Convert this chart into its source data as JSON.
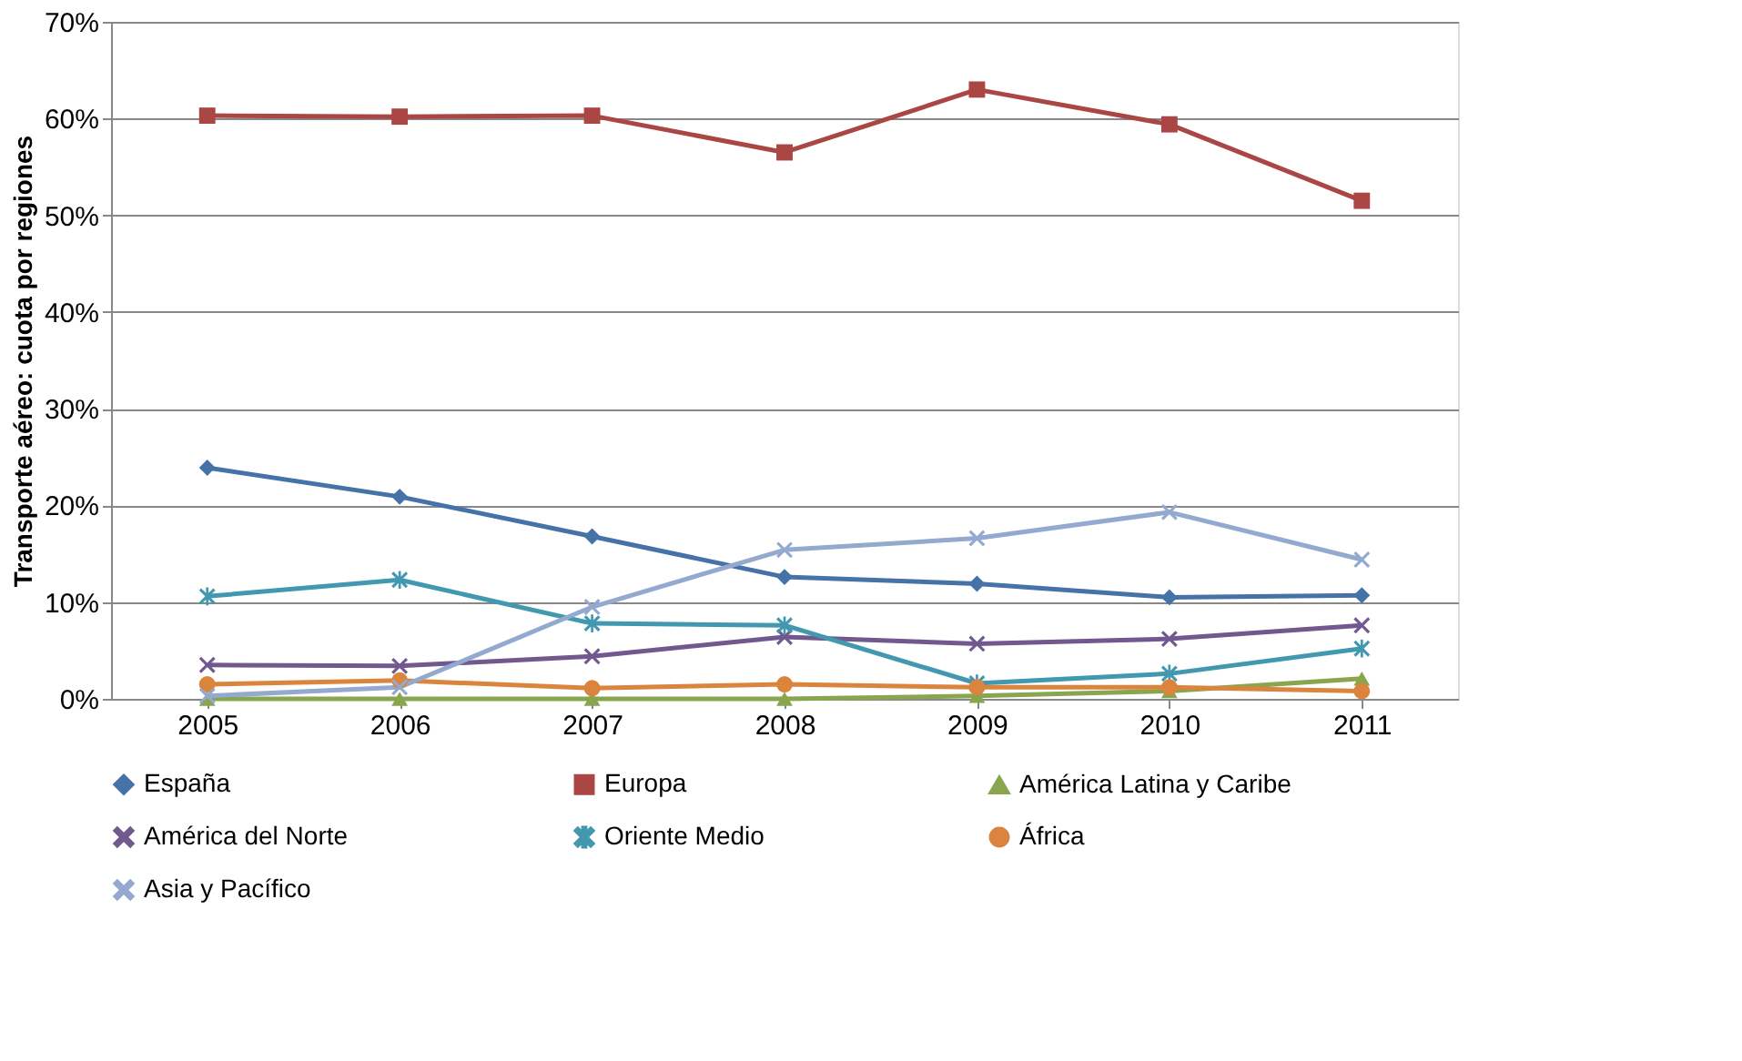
{
  "chart_data": {
    "type": "line",
    "ylabel": "Transporte aéreo: cuota por regiones",
    "categories": [
      "2005",
      "2006",
      "2007",
      "2008",
      "2009",
      "2010",
      "2011"
    ],
    "series": [
      {
        "name": "España",
        "color": "#4572a7",
        "marker": "diamond",
        "values": [
          23.9,
          20.9,
          16.8,
          12.6,
          11.9,
          10.5,
          10.7
        ]
      },
      {
        "name": "Europa",
        "color": "#aa4643",
        "marker": "square",
        "values": [
          60.3,
          60.2,
          60.3,
          56.5,
          63.0,
          59.4,
          51.5
        ]
      },
      {
        "name": "América Latina y Caribe",
        "color": "#89a54e",
        "marker": "triangle",
        "values": [
          0,
          0,
          0,
          0,
          0.3,
          0.8,
          2.1
        ]
      },
      {
        "name": "América del Norte",
        "color": "#71588f",
        "marker": "cross",
        "values": [
          3.5,
          3.4,
          4.4,
          6.4,
          5.7,
          6.2,
          7.6
        ]
      },
      {
        "name": "Oriente Medio",
        "color": "#4198af",
        "marker": "star",
        "values": [
          10.6,
          12.3,
          7.8,
          7.6,
          1.6,
          2.6,
          5.2
        ]
      },
      {
        "name": "África",
        "color": "#db843d",
        "marker": "circle",
        "values": [
          1.5,
          1.9,
          1.1,
          1.5,
          1.2,
          1.2,
          0.8
        ]
      },
      {
        "name": "Asia y Pacífico",
        "color": "#93a9cf",
        "marker": "cross",
        "values": [
          0.3,
          1.2,
          9.5,
          15.4,
          16.6,
          19.3,
          14.4
        ]
      }
    ],
    "ylim": [
      0,
      70
    ],
    "yticks": [
      {
        "value": 0,
        "label": "0%"
      },
      {
        "value": 10,
        "label": "10%"
      },
      {
        "value": 20,
        "label": "20%"
      },
      {
        "value": 30,
        "label": "30%"
      },
      {
        "value": 40,
        "label": "40%"
      },
      {
        "value": 50,
        "label": "50%"
      },
      {
        "value": 60,
        "label": "60%"
      },
      {
        "value": 70,
        "label": "70%"
      }
    ],
    "grid": "y",
    "legend": "bottom"
  }
}
